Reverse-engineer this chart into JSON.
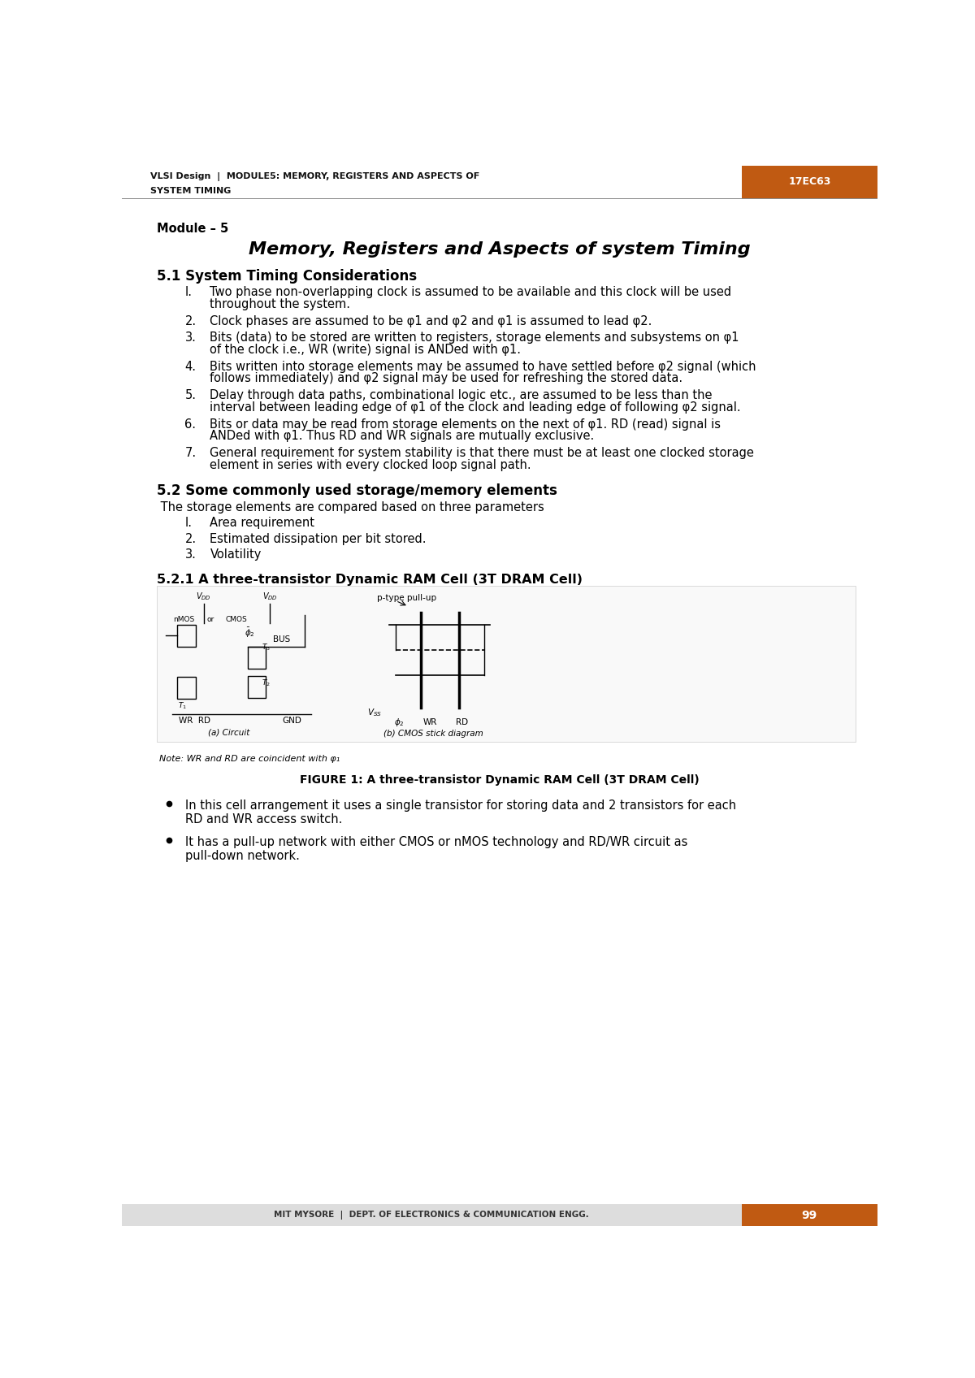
{
  "page_width": 12.0,
  "page_height": 16.96,
  "bg_color": "#ffffff",
  "header_bg": "#C05A12",
  "header_text_color": "#ffffff",
  "header_code": "17EC63",
  "footer_bg": "#C05A12",
  "footer_text": "MIT MYSORE  |  DEPT. OF ELECTRONICS & COMMUNICATION ENGG.",
  "footer_page": "99",
  "footer_text_color": "#ffffff",
  "module_label": "Module – 5",
  "main_title": "Memory, Registers and Aspects of system Timing",
  "section_51_title": "5.1 System Timing Considerations",
  "items_51": [
    "Two phase non-overlapping clock is assumed to be available and this clock will be used\nthroughout the system.",
    "Clock phases are assumed to be φ1 and φ2 and φ1 is assumed to lead φ2.",
    "Bits (data) to be stored are written to registers, storage elements and subsystems on φ1\nof the clock i.e., WR (write) signal is ANDed with φ1.",
    "Bits written into storage elements may be assumed to have settled before φ2 signal (which\nfollows immediately) and φ2 signal may be used for refreshing the stored data.",
    "Delay through data paths, combinational logic etc., are assumed to be less than the\ninterval between leading edge of φ1 of the clock and leading edge of following φ2 signal.",
    "Bits or data may be read from storage elements on the next of φ1. RD (read) signal is\nANDed with φ1. Thus RD and WR signals are mutually exclusive.",
    "General requirement for system stability is that there must be at least one clocked storage\nelement in series with every clocked loop signal path."
  ],
  "section_52_title": "5.2 Some commonly used storage/memory elements",
  "section_52_intro": " The storage elements are compared based on three parameters",
  "items_52": [
    "Area requirement",
    "Estimated dissipation per bit stored.",
    "Volatility"
  ],
  "section_521_title": "5.2.1 A three-transistor Dynamic RAM Cell (3T DRAM Cell)",
  "figure_caption": "FIGURE 1: A three-transistor Dynamic RAM Cell (3T DRAM Cell)",
  "figure_note": "Note: WR and RD are coincident with φ₁",
  "bullet_items": [
    "In this cell arrangement it uses a single transistor for storing data and 2 transistors for each\nRD and WR access switch.",
    "It has a pull-up network with either CMOS or nMOS technology and RD/WR circuit as\npull-down network."
  ],
  "text_color": "#000000",
  "body_font_size": 10.5,
  "section_font_size": 12,
  "title_font_size": 16
}
